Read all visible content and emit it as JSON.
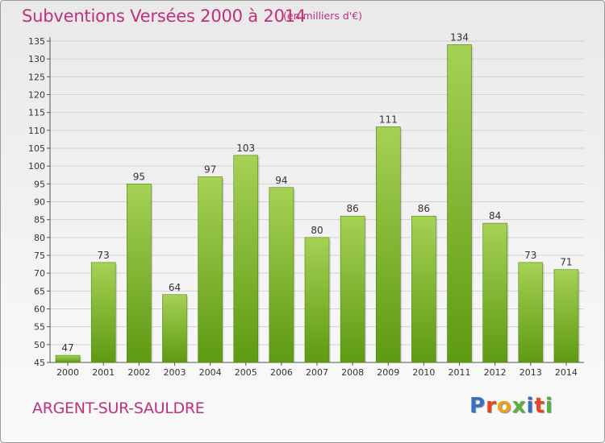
{
  "header": {
    "title": "Subventions Versées 2000 à 2014",
    "unit_note": "(en milliers d'€)"
  },
  "footer": {
    "town": "ARGENT-SUR-SAULDRE",
    "brand_letters": [
      "P",
      "r",
      "o",
      "x",
      "i",
      "t",
      "i"
    ],
    "brand_colors": [
      "#3a6fc4",
      "#e8441f",
      "#e8a21f",
      "#58b03a",
      "#3a6fc4",
      "#e8441f",
      "#58b03a"
    ]
  },
  "colors": {
    "bar_top": "#a6d155",
    "bar_bottom": "#5e9a12",
    "title": "#c0307b"
  },
  "chart_data": {
    "type": "bar",
    "categories": [
      "2000",
      "2001",
      "2002",
      "2003",
      "2004",
      "2005",
      "2006",
      "2007",
      "2008",
      "2009",
      "2010",
      "2011",
      "2012",
      "2013",
      "2014"
    ],
    "values": [
      47,
      73,
      95,
      64,
      97,
      103,
      94,
      80,
      86,
      111,
      86,
      134,
      84,
      73,
      71
    ],
    "ylim": [
      45,
      135
    ],
    "yticks": [
      45,
      50,
      55,
      60,
      65,
      70,
      75,
      80,
      85,
      90,
      95,
      100,
      105,
      110,
      115,
      120,
      125,
      130,
      135
    ],
    "grid": true,
    "data_labels": true
  }
}
